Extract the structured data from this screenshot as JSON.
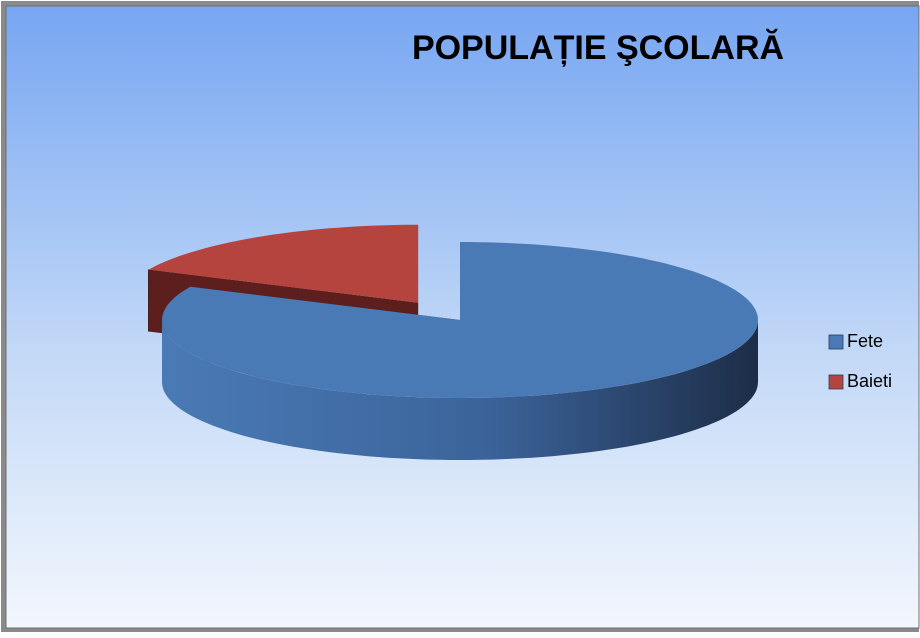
{
  "chart_data": {
    "type": "pie",
    "title": "POPULAȚIE   ŞCOLARĂ",
    "categories": [
      "Fete",
      "Baieti"
    ],
    "values": [
      82,
      18
    ],
    "colors": [
      "#4a7ab5",
      "#b5443f"
    ],
    "legend": "right"
  }
}
